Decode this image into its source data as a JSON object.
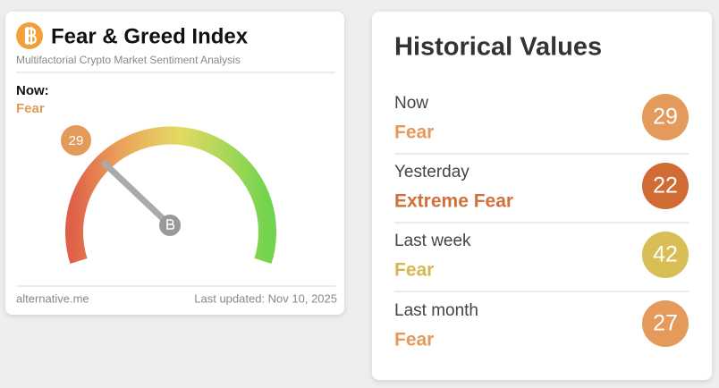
{
  "widget": {
    "title": "Fear & Greed Index",
    "subtitle": "Multifactorial Crypto Market Sentiment Analysis",
    "now_label": "Now:",
    "now_status": "Fear",
    "gauge_value": "29",
    "footer_source": "alternative.me",
    "footer_updated": "Last updated: Nov 10, 2025"
  },
  "history": {
    "title": "Historical Values",
    "rows": [
      {
        "label": "Now",
        "status": "Fear",
        "value": "29"
      },
      {
        "label": "Yesterday",
        "status": "Extreme Fear",
        "value": "22"
      },
      {
        "label": "Last week",
        "status": "Fear",
        "value": "42"
      },
      {
        "label": "Last month",
        "status": "Fear",
        "value": "27"
      }
    ]
  }
}
